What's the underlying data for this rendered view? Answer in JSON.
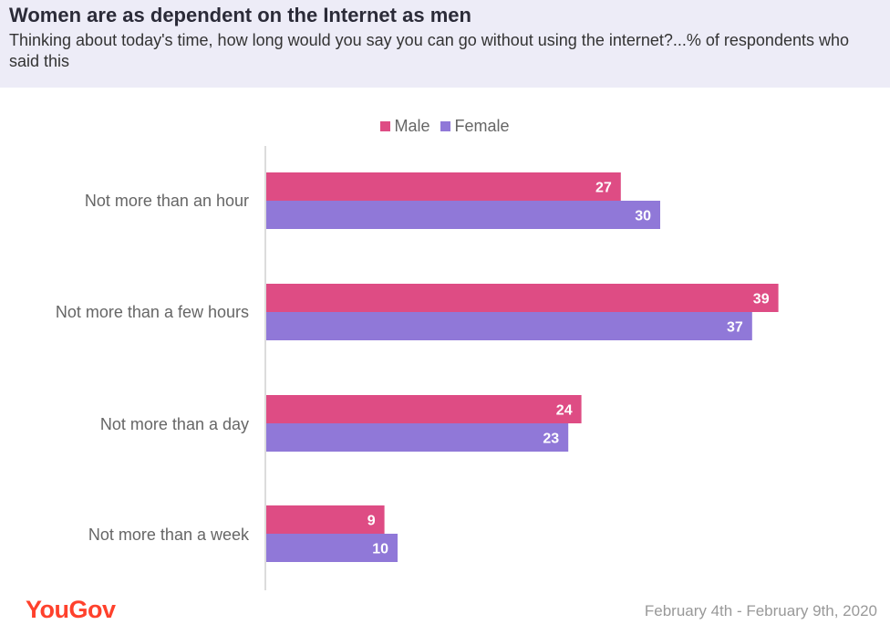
{
  "header": {
    "title": "Women are as dependent on the Internet as men",
    "subtitle": "Thinking about today's time, how long would you say you can go without using the internet?...% of respondents who said this"
  },
  "footer": {
    "logo": "YouGov",
    "date_range": "February 4th - February 9th, 2020"
  },
  "colors": {
    "male": "#de4c84",
    "female": "#9078d8"
  },
  "chart_data": {
    "type": "bar",
    "orientation": "horizontal",
    "categories": [
      "Not more than an hour",
      "Not more than a few hours",
      "Not more than a day",
      "Not more than a week"
    ],
    "series": [
      {
        "name": "Male",
        "values": [
          27,
          39,
          24,
          9
        ]
      },
      {
        "name": "Female",
        "values": [
          30,
          37,
          23,
          10
        ]
      }
    ],
    "xlim": [
      0,
      40
    ],
    "grid": false,
    "legend_position": "top-center",
    "data_labels": true
  }
}
